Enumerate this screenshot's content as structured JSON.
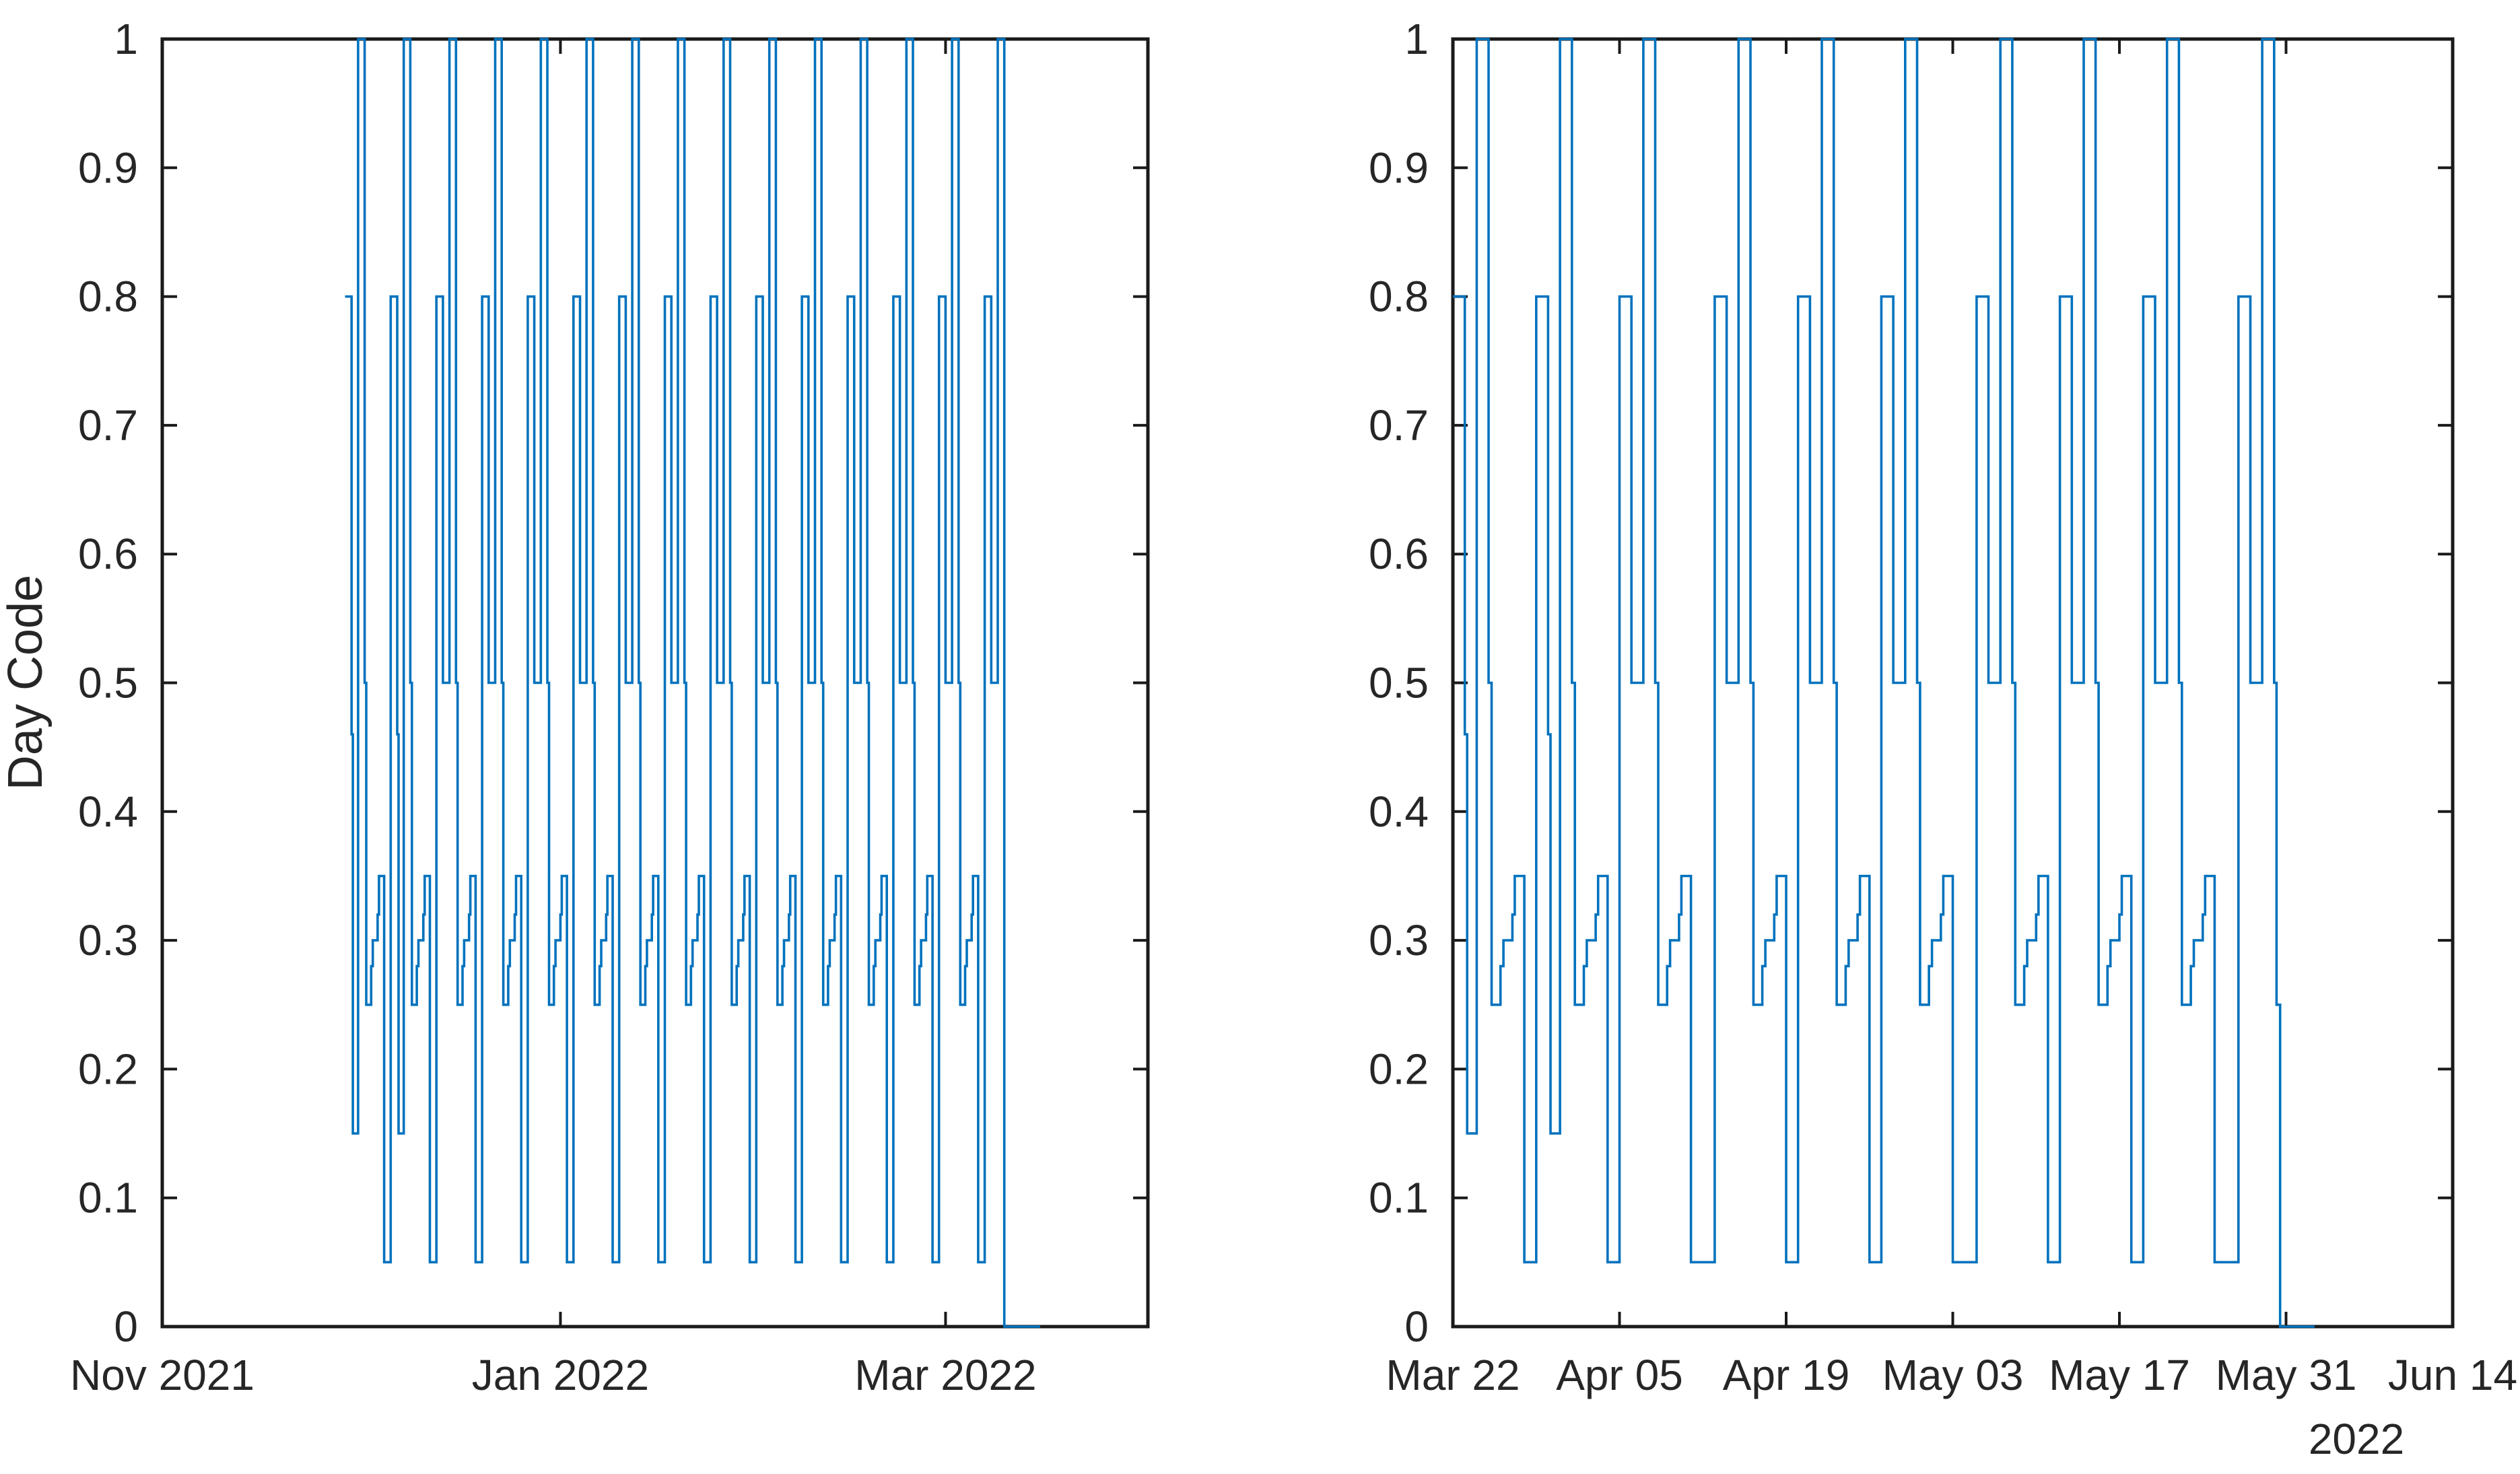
{
  "figure": {
    "background": "#ffffff",
    "title": ""
  },
  "colors": {
    "line": "#0072BD",
    "axis": "#1a1a1a",
    "text": "#262626"
  },
  "chart_data": [
    {
      "type": "line",
      "subtype": "step",
      "title": "",
      "xlabel": "",
      "ylabel": "Day Code",
      "ylim": [
        0,
        1
      ],
      "grid": false,
      "legend": null,
      "box": true,
      "yticks": [
        0,
        0.1,
        0.2,
        0.3,
        0.4,
        0.5,
        0.6,
        0.7,
        0.8,
        0.9,
        1
      ],
      "ytick_labels": [
        "0",
        "0.1",
        "0.2",
        "0.3",
        "0.4",
        "0.5",
        "0.6",
        "0.7",
        "0.8",
        "0.9",
        "1"
      ],
      "x_axis_start_date": "Nov 01 2021",
      "xlim_days": [
        0,
        151
      ],
      "xticks": [
        {
          "day": 0,
          "label": "Nov 2021"
        },
        {
          "day": 61,
          "label": "Jan 2022"
        },
        {
          "day": 120,
          "label": "Mar 2022"
        }
      ],
      "x_secondary_label": "",
      "series": [
        {
          "name": "day-code-step",
          "description_levels": [
            0.05,
            0.15,
            0.25,
            0.3,
            0.35,
            0.5,
            0.8,
            1
          ],
          "patterns": {
            "A": {
              "values": [
                0.8,
                0.46,
                0.15,
                1,
                0.5,
                0.25,
                0.28,
                0.3,
                0.32,
                0.35,
                0.05
              ],
              "widths": [
                1,
                0.2,
                0.8,
                1,
                0.25,
                0.75,
                0.25,
                0.75,
                0.2,
                0.8,
                1
              ]
            },
            "B7": {
              "values": [
                0.8,
                0.5,
                1,
                0.5,
                0.25,
                0.28,
                0.3,
                0.32,
                0.35,
                0.05
              ],
              "widths": [
                1,
                1,
                1,
                0.25,
                0.75,
                0.25,
                0.75,
                0.2,
                0.8,
                1
              ]
            },
            "B8": {
              "values": [
                0.8,
                0.5,
                1,
                0.5,
                0.25,
                0.28,
                0.3,
                0.32,
                0.35,
                0.05
              ],
              "widths": [
                1,
                1,
                1,
                0.25,
                0.75,
                0.25,
                0.75,
                0.2,
                0.8,
                2
              ]
            }
          },
          "cycles": [
            {
              "start": 28,
              "pattern": "A"
            },
            {
              "start": 35,
              "pattern": "A"
            },
            {
              "start": 42,
              "pattern": "B7"
            },
            {
              "start": 49,
              "pattern": "B7"
            },
            {
              "start": 56,
              "pattern": "B7"
            },
            {
              "start": 63,
              "pattern": "B7"
            },
            {
              "start": 70,
              "pattern": "B7"
            },
            {
              "start": 77,
              "pattern": "B7"
            },
            {
              "start": 84,
              "pattern": "B7"
            },
            {
              "start": 91,
              "pattern": "B7"
            },
            {
              "start": 98,
              "pattern": "B7"
            },
            {
              "start": 105,
              "pattern": "B7"
            },
            {
              "start": 112,
              "pattern": "B7"
            },
            {
              "start": 119,
              "pattern": "B7"
            },
            {
              "start": 126,
              "values": [
                0.8,
                0.5,
                1
              ],
              "widths": [
                1,
                1,
                1
              ]
            },
            {
              "start": 129,
              "values": [
                0
              ],
              "end": 134.5
            }
          ]
        }
      ]
    },
    {
      "type": "line",
      "subtype": "step",
      "title": "",
      "xlabel": "",
      "ylabel": "",
      "ylim": [
        0,
        1
      ],
      "grid": false,
      "legend": null,
      "box": true,
      "yticks": [
        0,
        0.1,
        0.2,
        0.3,
        0.4,
        0.5,
        0.6,
        0.7,
        0.8,
        0.9,
        1
      ],
      "ytick_labels": [
        "0",
        "0.1",
        "0.2",
        "0.3",
        "0.4",
        "0.5",
        "0.6",
        "0.7",
        "0.8",
        "0.9",
        "1"
      ],
      "x_axis_start_date": "Mar 22 2022",
      "xlim_days": [
        0,
        84
      ],
      "xticks": [
        {
          "day": 0,
          "label": "Mar 22"
        },
        {
          "day": 14,
          "label": "Apr 05"
        },
        {
          "day": 28,
          "label": "Apr 19"
        },
        {
          "day": 42,
          "label": "May 03"
        },
        {
          "day": 56,
          "label": "May 17"
        },
        {
          "day": 70,
          "label": "May 31"
        },
        {
          "day": 84,
          "label": "Jun 14"
        }
      ],
      "x_secondary_label": "2022",
      "series": [
        {
          "name": "day-code-step",
          "description_levels": [
            0.05,
            0.15,
            0.25,
            0.3,
            0.35,
            0.5,
            0.8,
            1
          ],
          "patterns": {
            "A": {
              "values": [
                0.8,
                0.46,
                0.15,
                1,
                0.5,
                0.25,
                0.28,
                0.3,
                0.32,
                0.35,
                0.05
              ],
              "widths": [
                1,
                0.2,
                0.8,
                1,
                0.25,
                0.75,
                0.25,
                0.75,
                0.2,
                0.8,
                1
              ]
            },
            "B7": {
              "values": [
                0.8,
                0.5,
                1,
                0.5,
                0.25,
                0.28,
                0.3,
                0.32,
                0.35,
                0.05
              ],
              "widths": [
                1,
                1,
                1,
                0.25,
                0.75,
                0.25,
                0.75,
                0.2,
                0.8,
                1
              ]
            },
            "B8": {
              "values": [
                0.8,
                0.5,
                1,
                0.5,
                0.25,
                0.28,
                0.3,
                0.32,
                0.35,
                0.05
              ],
              "widths": [
                1,
                1,
                1,
                0.25,
                0.75,
                0.25,
                0.75,
                0.2,
                0.8,
                2
              ]
            }
          },
          "cycles": [
            {
              "start": 0,
              "pattern": "A"
            },
            {
              "start": 7,
              "pattern": "A"
            },
            {
              "start": 14,
              "pattern": "B8"
            },
            {
              "start": 22,
              "pattern": "B7"
            },
            {
              "start": 29,
              "pattern": "B7"
            },
            {
              "start": 36,
              "pattern": "B8"
            },
            {
              "start": 44,
              "pattern": "B7"
            },
            {
              "start": 51,
              "pattern": "B7"
            },
            {
              "start": 58,
              "pattern": "B8"
            },
            {
              "start": 66,
              "values": [
                0.8,
                0.5,
                1,
                0.5,
                0.25
              ],
              "widths": [
                1,
                1,
                1,
                0.2,
                0.3
              ]
            },
            {
              "start": 69.5,
              "values": [
                0
              ],
              "end": 72.4
            }
          ]
        }
      ]
    }
  ]
}
